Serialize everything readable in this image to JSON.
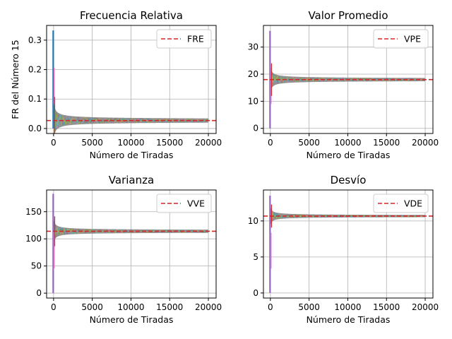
{
  "chart_data": [
    {
      "type": "line",
      "title": "Frecuencia Relativa",
      "xlabel": "Número de Tiradas",
      "ylabel": "FR del Número 15",
      "xlim": [
        -900,
        21000
      ],
      "ylim": [
        -0.017,
        0.35
      ],
      "xticks": [
        0,
        5000,
        10000,
        15000,
        20000
      ],
      "yticks": [
        0.0,
        0.1,
        0.2,
        0.3
      ],
      "ytick_labels": [
        "0.0",
        "0.1",
        "0.2",
        "0.3"
      ],
      "grid": true,
      "legend": {
        "position": "top-right",
        "label": "FRE",
        "color": "#d62728",
        "style": "dashed"
      },
      "expected": 0.027,
      "band": {
        "center": 0.027,
        "width_at_start": 0.16,
        "width_at_end": 0.006,
        "color": "#7f7f7f"
      },
      "spike": {
        "start": 0.0,
        "peak": 0.333,
        "color": "#1f77b4",
        "accents": [
          "#e377c2",
          "#d62728"
        ]
      }
    },
    {
      "type": "line",
      "title": "Valor Promedio",
      "xlabel": "Número de Tiradas",
      "ylabel": "",
      "xlim": [
        -900,
        21000
      ],
      "ylim": [
        -1.9,
        38
      ],
      "xticks": [
        0,
        5000,
        10000,
        15000,
        20000
      ],
      "yticks": [
        0,
        10,
        20,
        30
      ],
      "ytick_labels": [
        "0",
        "10",
        "20",
        "30"
      ],
      "grid": true,
      "legend": {
        "position": "top-right",
        "label": "VPE",
        "color": "#d62728",
        "style": "dashed"
      },
      "expected": 18,
      "band": {
        "center": 18,
        "width_at_start": 12,
        "width_at_end": 0.6,
        "color": "#7f7f7f"
      },
      "spike": {
        "start": 0,
        "peak": 36,
        "color": "#9467bd",
        "accents": [
          "#e377c2",
          "#d62728"
        ]
      }
    },
    {
      "type": "line",
      "title": "Varianza",
      "xlabel": "Número de Tiradas",
      "ylabel": "",
      "xlim": [
        -900,
        21000
      ],
      "ylim": [
        -9,
        190
      ],
      "xticks": [
        0,
        5000,
        10000,
        15000,
        20000
      ],
      "yticks": [
        0,
        50,
        100,
        150
      ],
      "ytick_labels": [
        "0",
        "50",
        "100",
        "150"
      ],
      "grid": true,
      "legend": {
        "position": "top-right",
        "label": "VVE",
        "color": "#d62728",
        "style": "dashed"
      },
      "expected": 114,
      "band": {
        "center": 114,
        "width_at_start": 55,
        "width_at_end": 3,
        "color": "#7f7f7f"
      },
      "spike": {
        "start": 0,
        "peak": 183,
        "color": "#9467bd",
        "accents": [
          "#e377c2",
          "#d62728"
        ]
      }
    },
    {
      "type": "line",
      "title": "Desvío",
      "xlabel": "Número de Tiradas",
      "ylabel": "",
      "xlim": [
        -900,
        21000
      ],
      "ylim": [
        -0.7,
        14.3
      ],
      "xticks": [
        0,
        5000,
        10000,
        15000,
        20000
      ],
      "yticks": [
        0,
        5,
        10
      ],
      "ytick_labels": [
        "0",
        "5",
        "10"
      ],
      "grid": true,
      "legend": {
        "position": "top-right",
        "label": "VDE",
        "color": "#d62728",
        "style": "dashed"
      },
      "expected": 10.68,
      "band": {
        "center": 10.68,
        "width_at_start": 3.2,
        "width_at_end": 0.15,
        "color": "#7f7f7f"
      },
      "spike": {
        "start": 0,
        "peak": 13.5,
        "color": "#9467bd",
        "accents": [
          "#e377c2",
          "#d62728"
        ]
      }
    }
  ]
}
